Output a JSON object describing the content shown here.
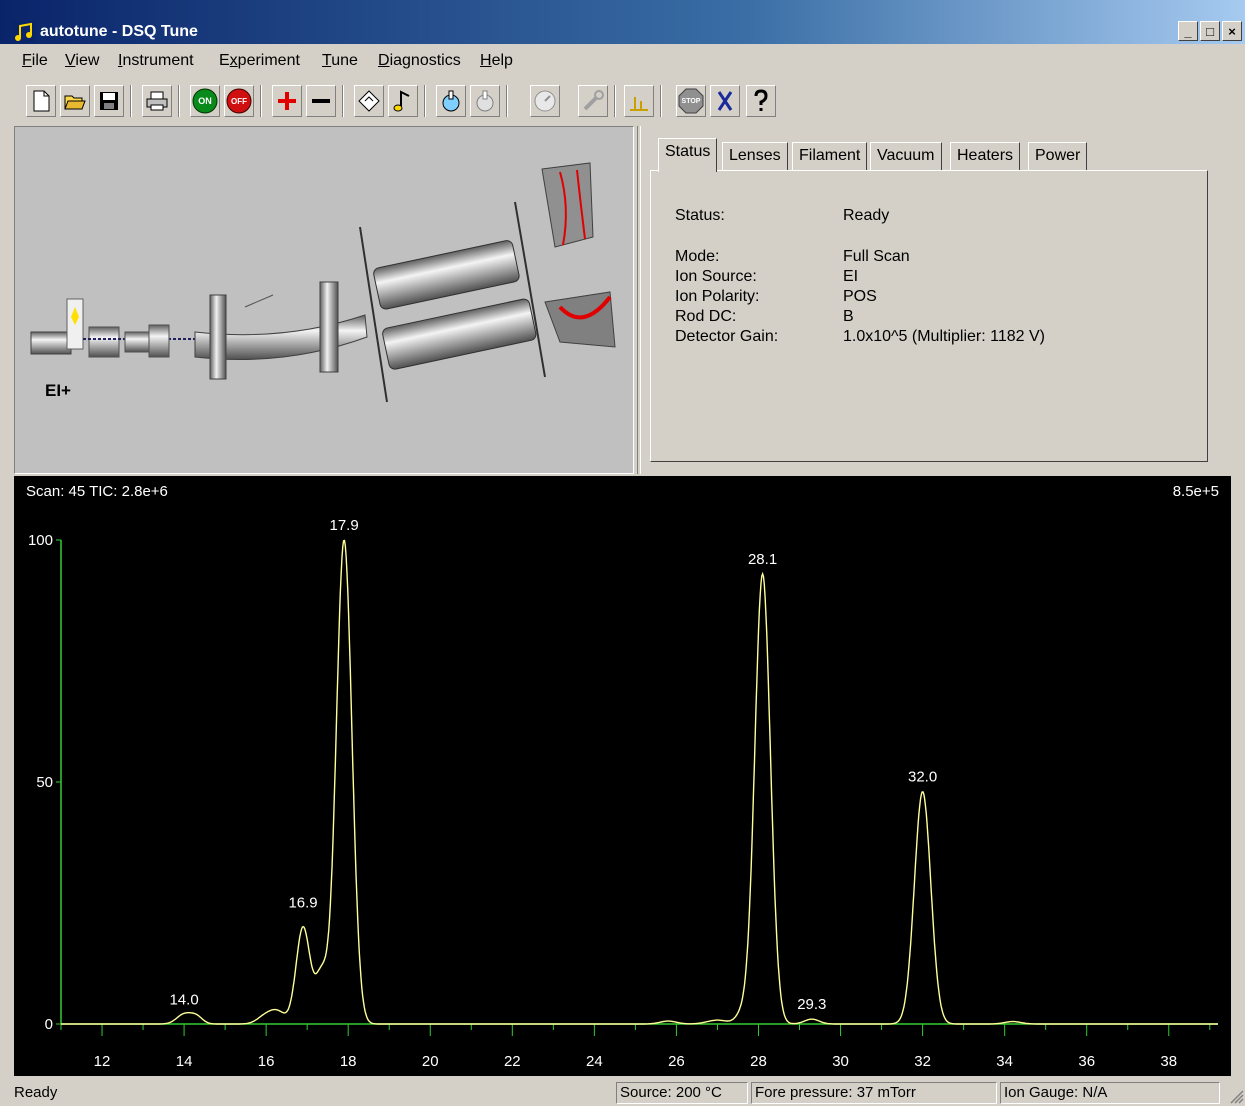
{
  "window": {
    "title": "autotune - DSQ Tune",
    "buttons": {
      "minimize": "_",
      "maximize": "□",
      "close": "×"
    }
  },
  "menu": [
    {
      "label": "File",
      "ul": "F",
      "rest": "ile"
    },
    {
      "label": "View",
      "ul": "V",
      "rest": "iew"
    },
    {
      "label": "Instrument",
      "ul": "I",
      "rest": "nstrument"
    },
    {
      "label": "Experiment",
      "pre": "E",
      "ul": "x",
      "rest": "periment"
    },
    {
      "label": "Tune",
      "ul": "T",
      "rest": "une"
    },
    {
      "label": "Diagnostics",
      "ul": "D",
      "rest": "iagnostics"
    },
    {
      "label": "Help",
      "ul": "H",
      "rest": "elp"
    }
  ],
  "toolbar": {
    "on_label": "ON",
    "off_label": "OFF",
    "stop_label": "STOP"
  },
  "diagram": {
    "source_label": "EI+"
  },
  "tabs": [
    "Status",
    "Lenses",
    "Filament",
    "Vacuum",
    "Heaters",
    "Power"
  ],
  "status": {
    "status_label": "Status:",
    "status_value": "Ready",
    "mode_label": "Mode:",
    "mode_value": "Full Scan",
    "ion_source_label": "Ion Source:",
    "ion_source_value": "EI",
    "ion_polarity_label": "Ion Polarity:",
    "ion_polarity_value": "POS",
    "rod_dc_label": "Rod DC:",
    "rod_dc_value": "B",
    "detector_gain_label": "Detector Gain:",
    "detector_gain_value": "1.0x10^5 (Multiplier: 1182 V)"
  },
  "chart_data": {
    "type": "line",
    "header_left": "Scan: 45  TIC: 2.8e+6",
    "header_right": "8.5e+5",
    "xlim": [
      11,
      39.2
    ],
    "ylim": [
      0,
      100
    ],
    "x_ticks": [
      12,
      14,
      16,
      18,
      20,
      22,
      24,
      26,
      28,
      30,
      32,
      34,
      36,
      38
    ],
    "y_ticks": [
      0,
      50,
      100
    ],
    "peaks": [
      {
        "x": 14.0,
        "y": 2,
        "label": "14.0"
      },
      {
        "x": 16.9,
        "y": 22,
        "label": "16.9"
      },
      {
        "x": 17.9,
        "y": 100,
        "label": "17.9"
      },
      {
        "x": 28.1,
        "y": 93,
        "label": "28.1"
      },
      {
        "x": 29.3,
        "y": 1,
        "label": "29.3"
      },
      {
        "x": 32.0,
        "y": 48,
        "label": "32.0"
      }
    ],
    "grid": false,
    "colors": {
      "trace": "#ffff99",
      "axis": "#33cc33",
      "text": "#ffffff",
      "background": "#000000"
    }
  },
  "statusbar": {
    "left": "Ready",
    "source": "Source:  200 °C",
    "fore": "Fore pressure:  37 mTorr",
    "gauge": "Ion Gauge:  N/A"
  }
}
